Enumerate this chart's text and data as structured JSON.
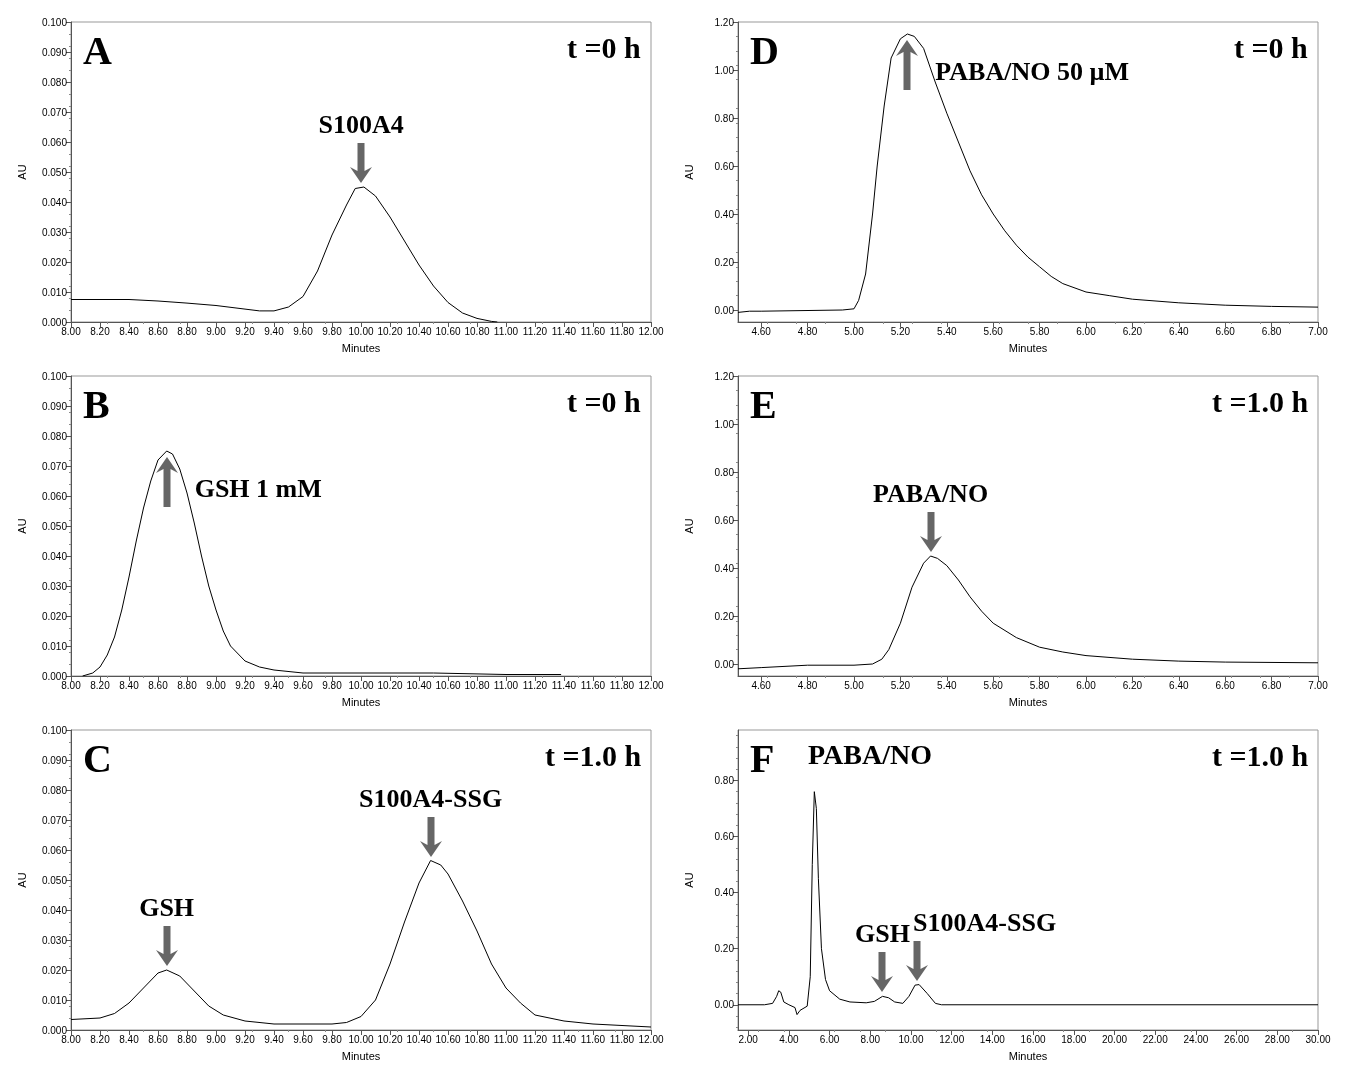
{
  "chart_data": [
    {
      "type": "line",
      "xlabel": "Minutes",
      "ylabel": "AU",
      "color": "#000000",
      "grid": false,
      "annotations": [
        "A",
        "t =0 h",
        {
          "text": "S100A4",
          "x": 10.0,
          "y": 0.045
        }
      ],
      "x": [
        8.0,
        8.4,
        8.6,
        8.8,
        9.0,
        9.2,
        9.3,
        9.4,
        9.5,
        9.6,
        9.7,
        9.8,
        9.9,
        9.96,
        10.02,
        10.1,
        10.2,
        10.3,
        10.4,
        10.5,
        10.6,
        10.7,
        10.8,
        10.9,
        10.94
      ],
      "values": [
        0.0075,
        0.0075,
        0.007,
        0.0063,
        0.0055,
        0.0043,
        0.0037,
        0.0037,
        0.005,
        0.0085,
        0.017,
        0.029,
        0.039,
        0.0445,
        0.045,
        0.042,
        0.035,
        0.027,
        0.019,
        0.012,
        0.0065,
        0.003,
        0.0012,
        0.0002,
        0
      ],
      "xlim": [
        8,
        12
      ],
      "xticks": [
        {
          "value": 8,
          "label": "8.00"
        },
        {
          "value": 8.2,
          "label": "8.20"
        },
        {
          "value": 8.4,
          "label": "8.40"
        },
        {
          "value": 8.6,
          "label": "8.60"
        },
        {
          "value": 8.8,
          "label": "8.80"
        },
        {
          "value": 9,
          "label": "9.00"
        },
        {
          "value": 9.2,
          "label": "9.20"
        },
        {
          "value": 9.4,
          "label": "9.40"
        },
        {
          "value": 9.6,
          "label": "9.60"
        },
        {
          "value": 9.8,
          "label": "9.80"
        },
        {
          "value": 10,
          "label": "10.00"
        },
        {
          "value": 10.2,
          "label": "10.20"
        },
        {
          "value": 10.4,
          "label": "10.40"
        },
        {
          "value": 10.6,
          "label": "10.60"
        },
        {
          "value": 10.8,
          "label": "10.80"
        },
        {
          "value": 11,
          "label": "11.00"
        },
        {
          "value": 11.2,
          "label": "11.20"
        },
        {
          "value": 11.4,
          "label": "11.40"
        },
        {
          "value": 11.6,
          "label": "11.60"
        },
        {
          "value": 11.8,
          "label": "11.80"
        },
        {
          "value": 12,
          "label": "12.00"
        }
      ],
      "ylim": [
        0,
        0.1
      ],
      "yticks": [
        {
          "value": 0,
          "label": "0.000"
        },
        {
          "value": 0.01,
          "label": "0.010"
        },
        {
          "value": 0.02,
          "label": "0.020"
        },
        {
          "value": 0.03,
          "label": "0.030"
        },
        {
          "value": 0.04,
          "label": "0.040"
        },
        {
          "value": 0.05,
          "label": "0.050"
        },
        {
          "value": 0.06,
          "label": "0.060"
        },
        {
          "value": 0.07,
          "label": "0.070"
        },
        {
          "value": 0.08,
          "label": "0.080"
        },
        {
          "value": 0.09,
          "label": "0.090"
        },
        {
          "value": 0.1,
          "label": "0.100"
        }
      ]
    },
    {
      "type": "line",
      "xlabel": "Minutes",
      "ylabel": "AU",
      "color": "#000000",
      "grid": false,
      "annotations": [
        "D",
        "t =0 h",
        {
          "text": "PABA/NO 50 µM",
          "x": 5.23,
          "y": 1.15
        }
      ],
      "x": [
        4.5,
        4.55,
        4.6,
        4.95,
        5.0,
        5.02,
        5.05,
        5.08,
        5.1,
        5.13,
        5.16,
        5.2,
        5.23,
        5.26,
        5.3,
        5.35,
        5.4,
        5.45,
        5.5,
        5.55,
        5.6,
        5.65,
        5.7,
        5.75,
        5.8,
        5.85,
        5.9,
        6.0,
        6.1,
        6.2,
        6.4,
        6.6,
        6.8,
        7.0
      ],
      "values": [
        -0.01,
        -0.005,
        -0.005,
        0.0,
        0.005,
        0.04,
        0.15,
        0.4,
        0.6,
        0.85,
        1.05,
        1.13,
        1.15,
        1.14,
        1.09,
        0.95,
        0.82,
        0.7,
        0.58,
        0.48,
        0.4,
        0.33,
        0.27,
        0.22,
        0.18,
        0.14,
        0.11,
        0.075,
        0.06,
        0.045,
        0.03,
        0.02,
        0.015,
        0.012
      ],
      "xlim": [
        4.5,
        7.0
      ],
      "xticks": [
        {
          "value": 4.6,
          "label": "4.60"
        },
        {
          "value": 4.8,
          "label": "4.80"
        },
        {
          "value": 5,
          "label": "5.00"
        },
        {
          "value": 5.2,
          "label": "5.20"
        },
        {
          "value": 5.4,
          "label": "5.40"
        },
        {
          "value": 5.6,
          "label": "5.60"
        },
        {
          "value": 5.8,
          "label": "5.80"
        },
        {
          "value": 6,
          "label": "6.00"
        },
        {
          "value": 6.2,
          "label": "6.20"
        },
        {
          "value": 6.4,
          "label": "6.40"
        },
        {
          "value": 6.6,
          "label": "6.60"
        },
        {
          "value": 6.8,
          "label": "6.80"
        },
        {
          "value": 7,
          "label": "7.00"
        }
      ],
      "ylim": [
        -0.05,
        1.2
      ],
      "yticks": [
        {
          "value": 0,
          "label": "0.00"
        },
        {
          "value": 0.2,
          "label": "0.20"
        },
        {
          "value": 0.4,
          "label": "0.40"
        },
        {
          "value": 0.6,
          "label": "0.60"
        },
        {
          "value": 0.8,
          "label": "0.80"
        },
        {
          "value": 1,
          "label": "1.00"
        },
        {
          "value": 1.2,
          "label": "1.20"
        }
      ]
    },
    {
      "type": "line",
      "xlabel": "Minutes",
      "ylabel": "AU",
      "color": "#000000",
      "grid": false,
      "annotations": [
        "B",
        "t =0 h",
        {
          "text": "GSH 1 mM",
          "x": 8.66,
          "y": 0.075
        }
      ],
      "x": [
        8.08,
        8.15,
        8.2,
        8.25,
        8.3,
        8.35,
        8.4,
        8.45,
        8.5,
        8.55,
        8.6,
        8.66,
        8.7,
        8.75,
        8.8,
        8.85,
        8.9,
        8.95,
        9.0,
        9.05,
        9.1,
        9.2,
        9.3,
        9.4,
        9.6,
        10.0,
        10.5,
        11.0,
        11.38
      ],
      "values": [
        0,
        0.001,
        0.003,
        0.007,
        0.013,
        0.022,
        0.033,
        0.045,
        0.056,
        0.065,
        0.072,
        0.075,
        0.074,
        0.069,
        0.061,
        0.051,
        0.04,
        0.03,
        0.022,
        0.015,
        0.01,
        0.005,
        0.003,
        0.002,
        0.001,
        0.001,
        0.001,
        0.0005,
        0.0005
      ],
      "xlim": [
        8,
        12
      ],
      "xticks": [
        {
          "value": 8,
          "label": "8.00"
        },
        {
          "value": 8.2,
          "label": "8.20"
        },
        {
          "value": 8.4,
          "label": "8.40"
        },
        {
          "value": 8.6,
          "label": "8.60"
        },
        {
          "value": 8.8,
          "label": "8.80"
        },
        {
          "value": 9,
          "label": "9.00"
        },
        {
          "value": 9.2,
          "label": "9.20"
        },
        {
          "value": 9.4,
          "label": "9.40"
        },
        {
          "value": 9.6,
          "label": "9.60"
        },
        {
          "value": 9.8,
          "label": "9.80"
        },
        {
          "value": 10,
          "label": "10.00"
        },
        {
          "value": 10.2,
          "label": "10.20"
        },
        {
          "value": 10.4,
          "label": "10.40"
        },
        {
          "value": 10.6,
          "label": "10.60"
        },
        {
          "value": 10.8,
          "label": "10.80"
        },
        {
          "value": 11,
          "label": "11.00"
        },
        {
          "value": 11.2,
          "label": "11.20"
        },
        {
          "value": 11.4,
          "label": "11.40"
        },
        {
          "value": 11.6,
          "label": "11.60"
        },
        {
          "value": 11.8,
          "label": "11.80"
        },
        {
          "value": 12,
          "label": "12.00"
        }
      ],
      "ylim": [
        0,
        0.1
      ],
      "yticks": [
        {
          "value": 0,
          "label": "0.000"
        },
        {
          "value": 0.01,
          "label": "0.010"
        },
        {
          "value": 0.02,
          "label": "0.020"
        },
        {
          "value": 0.03,
          "label": "0.030"
        },
        {
          "value": 0.04,
          "label": "0.040"
        },
        {
          "value": 0.05,
          "label": "0.050"
        },
        {
          "value": 0.06,
          "label": "0.060"
        },
        {
          "value": 0.07,
          "label": "0.070"
        },
        {
          "value": 0.08,
          "label": "0.080"
        },
        {
          "value": 0.09,
          "label": "0.090"
        },
        {
          "value": 0.1,
          "label": "0.100"
        }
      ]
    },
    {
      "type": "line",
      "xlabel": "Minutes",
      "ylabel": "AU",
      "color": "#000000",
      "grid": false,
      "annotations": [
        "E",
        "t =1.0 h",
        {
          "text": "PABA/NO",
          "x": 5.33,
          "y": 0.45
        }
      ],
      "x": [
        4.5,
        4.6,
        4.8,
        5.0,
        5.08,
        5.12,
        5.15,
        5.2,
        5.25,
        5.3,
        5.33,
        5.36,
        5.4,
        5.45,
        5.5,
        5.55,
        5.6,
        5.7,
        5.8,
        5.9,
        6.0,
        6.2,
        6.4,
        6.6,
        7.0
      ],
      "values": [
        -0.02,
        -0.015,
        -0.005,
        -0.005,
        0.0,
        0.02,
        0.06,
        0.17,
        0.32,
        0.42,
        0.45,
        0.44,
        0.41,
        0.35,
        0.28,
        0.22,
        0.17,
        0.11,
        0.07,
        0.05,
        0.035,
        0.02,
        0.012,
        0.008,
        0.005
      ],
      "xlim": [
        4.5,
        7.0
      ],
      "xticks": [
        {
          "value": 4.6,
          "label": "4.60"
        },
        {
          "value": 4.8,
          "label": "4.80"
        },
        {
          "value": 5,
          "label": "5.00"
        },
        {
          "value": 5.2,
          "label": "5.20"
        },
        {
          "value": 5.4,
          "label": "5.40"
        },
        {
          "value": 5.6,
          "label": "5.60"
        },
        {
          "value": 5.8,
          "label": "5.80"
        },
        {
          "value": 6,
          "label": "6.00"
        },
        {
          "value": 6.2,
          "label": "6.20"
        },
        {
          "value": 6.4,
          "label": "6.40"
        },
        {
          "value": 6.6,
          "label": "6.60"
        },
        {
          "value": 6.8,
          "label": "6.80"
        },
        {
          "value": 7,
          "label": "7.00"
        }
      ],
      "ylim": [
        -0.05,
        1.2
      ],
      "yticks": [
        {
          "value": 0,
          "label": "0.00"
        },
        {
          "value": 0.2,
          "label": "0.20"
        },
        {
          "value": 0.4,
          "label": "0.40"
        },
        {
          "value": 0.6,
          "label": "0.60"
        },
        {
          "value": 0.8,
          "label": "0.80"
        },
        {
          "value": 1,
          "label": "1.00"
        },
        {
          "value": 1.2,
          "label": "1.20"
        }
      ]
    },
    {
      "type": "line",
      "xlabel": "Minutes",
      "ylabel": "AU",
      "color": "#000000",
      "grid": false,
      "annotations": [
        "C",
        "t =1.0 h",
        {
          "text": "GSH",
          "x": 8.66,
          "y": 0.02
        },
        {
          "text": "S100A4-SSG",
          "x": 10.48,
          "y": 0.0565
        }
      ],
      "x": [
        8.0,
        8.2,
        8.3,
        8.4,
        8.5,
        8.6,
        8.66,
        8.75,
        8.85,
        8.95,
        9.05,
        9.2,
        9.4,
        9.8,
        9.9,
        10.0,
        10.1,
        10.2,
        10.3,
        10.4,
        10.48,
        10.55,
        10.6,
        10.7,
        10.8,
        10.9,
        11.0,
        11.1,
        11.2,
        11.4,
        11.6,
        11.8,
        12.0
      ],
      "values": [
        0.0035,
        0.004,
        0.0055,
        0.009,
        0.014,
        0.019,
        0.02,
        0.018,
        0.013,
        0.008,
        0.005,
        0.003,
        0.002,
        0.002,
        0.0025,
        0.0045,
        0.01,
        0.022,
        0.036,
        0.049,
        0.0565,
        0.055,
        0.052,
        0.043,
        0.033,
        0.022,
        0.014,
        0.009,
        0.005,
        0.003,
        0.002,
        0.0015,
        0.001
      ],
      "xlim": [
        8,
        12
      ],
      "xticks": [
        {
          "value": 8,
          "label": "8.00"
        },
        {
          "value": 8.2,
          "label": "8.20"
        },
        {
          "value": 8.4,
          "label": "8.40"
        },
        {
          "value": 8.6,
          "label": "8.60"
        },
        {
          "value": 8.8,
          "label": "8.80"
        },
        {
          "value": 9,
          "label": "9.00"
        },
        {
          "value": 9.2,
          "label": "9.20"
        },
        {
          "value": 9.4,
          "label": "9.40"
        },
        {
          "value": 9.6,
          "label": "9.60"
        },
        {
          "value": 9.8,
          "label": "9.80"
        },
        {
          "value": 10,
          "label": "10.00"
        },
        {
          "value": 10.2,
          "label": "10.20"
        },
        {
          "value": 10.4,
          "label": "10.40"
        },
        {
          "value": 10.6,
          "label": "10.60"
        },
        {
          "value": 10.8,
          "label": "10.80"
        },
        {
          "value": 11,
          "label": "11.00"
        },
        {
          "value": 11.2,
          "label": "11.20"
        },
        {
          "value": 11.4,
          "label": "11.40"
        },
        {
          "value": 11.6,
          "label": "11.60"
        },
        {
          "value": 11.8,
          "label": "11.80"
        },
        {
          "value": 12,
          "label": "12.00"
        }
      ],
      "ylim": [
        0,
        0.1
      ],
      "yticks": [
        {
          "value": 0,
          "label": "0.000"
        },
        {
          "value": 0.01,
          "label": "0.010"
        },
        {
          "value": 0.02,
          "label": "0.020"
        },
        {
          "value": 0.03,
          "label": "0.030"
        },
        {
          "value": 0.04,
          "label": "0.040"
        },
        {
          "value": 0.05,
          "label": "0.050"
        },
        {
          "value": 0.06,
          "label": "0.060"
        },
        {
          "value": 0.07,
          "label": "0.070"
        },
        {
          "value": 0.08,
          "label": "0.080"
        },
        {
          "value": 0.09,
          "label": "0.090"
        },
        {
          "value": 0.1,
          "label": "0.100"
        }
      ]
    },
    {
      "type": "line",
      "xlabel": "Minutes",
      "ylabel": "AU",
      "color": "#000000",
      "grid": false,
      "annotations": [
        "F",
        "PABA/NO",
        "t =1.0 h",
        {
          "text": "GSH",
          "x": 8.6,
          "y": 0.03
        },
        {
          "text": "S100A4-SSG",
          "x": 10.3,
          "y": 0.072
        }
      ],
      "x": [
        1.5,
        2.8,
        3.2,
        3.4,
        3.5,
        3.6,
        3.75,
        4.0,
        4.3,
        4.4,
        4.55,
        4.9,
        5.05,
        5.15,
        5.25,
        5.35,
        5.45,
        5.6,
        5.8,
        6.0,
        6.5,
        7.0,
        7.8,
        8.2,
        8.6,
        8.9,
        9.2,
        9.6,
        9.9,
        10.2,
        10.4,
        10.8,
        11.2,
        11.5,
        30
      ],
      "values": [
        0,
        0,
        0.005,
        0.03,
        0.05,
        0.045,
        0.01,
        0.0,
        -0.01,
        -0.035,
        -0.02,
        -0.005,
        0.1,
        0.5,
        0.76,
        0.7,
        0.45,
        0.2,
        0.09,
        0.05,
        0.02,
        0.01,
        0.007,
        0.012,
        0.03,
        0.025,
        0.01,
        0.005,
        0.03,
        0.07,
        0.072,
        0.04,
        0.005,
        0,
        0
      ],
      "xlim": [
        1.5,
        30
      ],
      "xticks": [
        {
          "value": 2,
          "label": "2.00"
        },
        {
          "value": 4,
          "label": "4.00"
        },
        {
          "value": 6,
          "label": "6.00"
        },
        {
          "value": 8,
          "label": "8.00"
        },
        {
          "value": 10,
          "label": "10.00"
        },
        {
          "value": 12,
          "label": "12.00"
        },
        {
          "value": 14,
          "label": "14.00"
        },
        {
          "value": 16,
          "label": "16.00"
        },
        {
          "value": 18,
          "label": "18.00"
        },
        {
          "value": 20,
          "label": "20.00"
        },
        {
          "value": 22,
          "label": "22.00"
        },
        {
          "value": 24,
          "label": "24.00"
        },
        {
          "value": 26,
          "label": "26.00"
        },
        {
          "value": 28,
          "label": "28.00"
        },
        {
          "value": 30,
          "label": "30.00"
        }
      ],
      "ylim": [
        -0.09,
        0.98
      ],
      "yticks": [
        {
          "value": 0,
          "label": "0.00"
        },
        {
          "value": 0.2,
          "label": "0.20"
        },
        {
          "value": 0.4,
          "label": "0.40"
        },
        {
          "value": 0.6,
          "label": "0.60"
        },
        {
          "value": 0.8,
          "label": "0.80"
        }
      ]
    }
  ]
}
